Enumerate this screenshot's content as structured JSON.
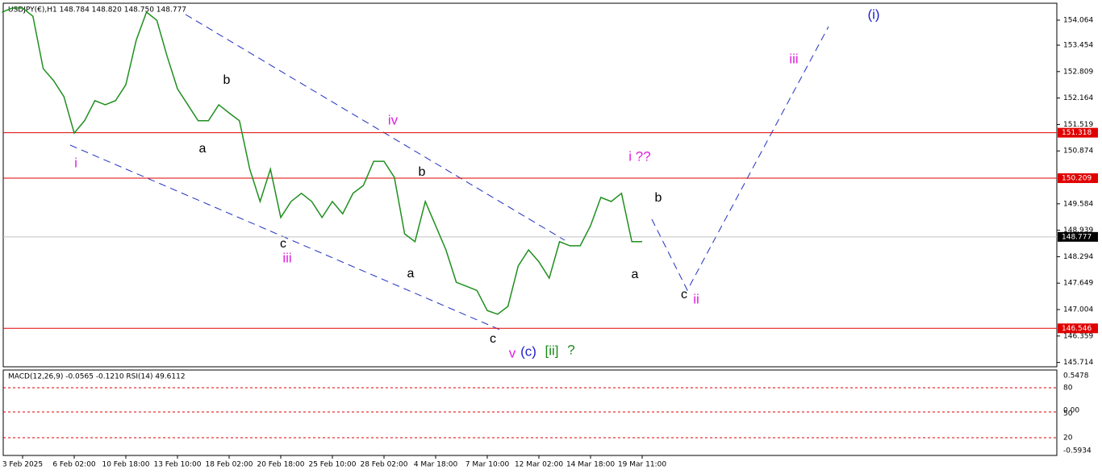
{
  "header": "USDJPY(€),H1  148.784 148.820 148.750 148.777",
  "chart_data": {
    "type": "line",
    "categories": [
      null,
      null,
      "3 Feb 2025",
      null,
      null,
      null,
      null,
      "6 Feb 02:00",
      null,
      null,
      null,
      null,
      "10 Feb 18:00",
      null,
      null,
      null,
      null,
      "13 Feb 10:00",
      null,
      null,
      null,
      null,
      "18 Feb 02:00",
      null,
      null,
      null,
      null,
      "20 Feb 18:00",
      null,
      null,
      null,
      null,
      "25 Feb 10:00",
      null,
      null,
      null,
      null,
      "28 Feb 02:00",
      null,
      null,
      null,
      null,
      "4 Mar 18:00",
      null,
      null,
      null,
      null,
      "7 Mar 10:00",
      null,
      null,
      null,
      null,
      "12 Mar 02:00",
      null,
      null,
      null,
      null,
      "14 Mar 18:00",
      null,
      null,
      null,
      null,
      "19 Mar 11:00"
    ],
    "values": [
      154.26,
      154.36,
      154.36,
      154.16,
      152.88,
      152.59,
      152.2,
      151.31,
      151.61,
      152.1,
      152.0,
      152.1,
      152.49,
      153.57,
      154.26,
      154.06,
      153.18,
      152.39,
      152.0,
      151.61,
      151.61,
      152.0,
      151.8,
      151.61,
      150.43,
      149.64,
      150.43,
      149.25,
      149.64,
      149.84,
      149.64,
      149.25,
      149.64,
      149.34,
      149.84,
      150.03,
      150.62,
      150.62,
      150.23,
      148.85,
      148.66,
      149.64,
      149.05,
      148.46,
      147.67,
      147.57,
      147.47,
      146.98,
      146.89,
      147.08,
      148.07,
      148.46,
      148.17,
      147.77,
      148.66,
      148.56,
      148.56,
      149.05,
      149.74,
      149.64,
      149.84,
      148.66,
      148.66
    ],
    "color": "#1f8f1f",
    "ylim": [
      145.608,
      154.477
    ],
    "yticks": [
      154.064,
      153.454,
      152.809,
      152.164,
      151.519,
      150.874,
      149.584,
      148.939,
      148.294,
      147.649,
      147.004,
      146.359,
      145.714
    ],
    "levels": [
      {
        "value": 151.318,
        "color": "#e00000"
      },
      {
        "value": 150.209,
        "color": "#e00000"
      },
      {
        "value": 146.546,
        "color": "#e00000"
      },
      {
        "value": 148.777,
        "color": "#000000"
      }
    ],
    "annotations": [
      {
        "text": "i",
        "color": "#e020e0"
      },
      {
        "text": "a",
        "color": "#000000"
      },
      {
        "text": "b",
        "color": "#000000"
      },
      {
        "text": "c",
        "color": "#000000"
      },
      {
        "text": "iii",
        "color": "#e020e0"
      },
      {
        "text": "iv",
        "color": "#e020e0"
      },
      {
        "text": "b",
        "color": "#000000"
      },
      {
        "text": "a",
        "color": "#000000"
      },
      {
        "text": "c",
        "color": "#000000"
      },
      {
        "text": "v",
        "color": "#e020e0"
      },
      {
        "text": "(c)",
        "color": "#2020d0"
      },
      {
        "text": "[ii]",
        "color": "#1a8a1a"
      },
      {
        "text": "?",
        "color": "#1a8a1a"
      },
      {
        "text": "i ??",
        "color": "#e020e0"
      },
      {
        "text": "b",
        "color": "#000000"
      },
      {
        "text": "a",
        "color": "#000000"
      },
      {
        "text": "c",
        "color": "#000000"
      },
      {
        "text": "ii",
        "color": "#e020e0"
      },
      {
        "text": "iii",
        "color": "#e020e0"
      },
      {
        "text": "(i)",
        "color": "#2020d0"
      }
    ]
  },
  "indicator": {
    "title": "MACD(12,26,9) -0.0565 -0.1210  RSI(14) 49.6112",
    "ticks": [
      "0.5478",
      "80",
      "0.00",
      "50",
      "20",
      "-0.5934"
    ]
  }
}
